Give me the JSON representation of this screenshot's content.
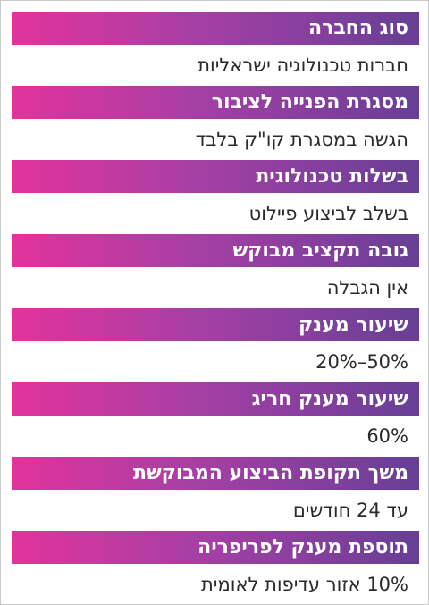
{
  "items": [
    {
      "label": "סוג החברה",
      "value": "חברות טכנולוגיה ישראליות"
    },
    {
      "label": "מסגרת הפנייה לציבור",
      "value": "הגשה במסגרת קו\"ק בלבד"
    },
    {
      "label": "בשלות טכנולוגית",
      "value": "בשלב לביצוע פיילוט"
    },
    {
      "label": "גובה תקציב מבוקש",
      "value": "אין הגבלה"
    },
    {
      "label": "שיעור מענק",
      "value": "50%–20%"
    },
    {
      "label": "שיעור מענק חריג",
      "value": "60%"
    },
    {
      "label": "משך תקופת הביצוע המבוקשת",
      "value": "עד 24 חודשים"
    },
    {
      "label": "תוספת מענק לפריפריה",
      "value": "10% אזור עדיפות לאומית"
    }
  ]
}
